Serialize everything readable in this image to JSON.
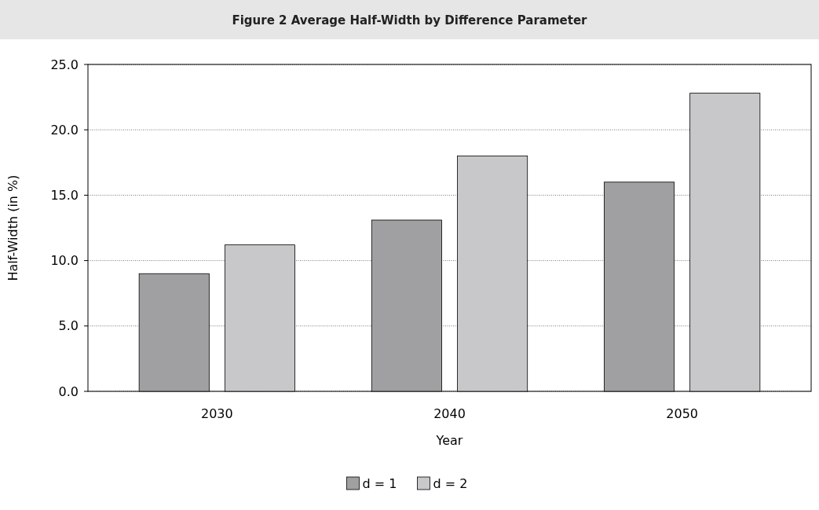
{
  "chart_data": {
    "type": "bar",
    "title": "Figure 2  Average Half-Width by Difference Parameter",
    "xlabel": "Year",
    "ylabel": "Half-Width (in %)",
    "categories": [
      "2030",
      "2040",
      "2050"
    ],
    "series": [
      {
        "name": "d = 1",
        "color": "#a0a0a2",
        "values": [
          9.0,
          13.1,
          16.0
        ]
      },
      {
        "name": "d = 2",
        "color": "#c8c8ca",
        "values": [
          11.2,
          18.0,
          22.8
        ]
      }
    ],
    "ylim": [
      0,
      25
    ],
    "yticks": [
      {
        "value": 0,
        "label": "0.0"
      },
      {
        "value": 5,
        "label": "5.0"
      },
      {
        "value": 10,
        "label": "10.0"
      },
      {
        "value": 15,
        "label": "15.0"
      },
      {
        "value": 20,
        "label": "20.0"
      },
      {
        "value": 25,
        "label": "25.0"
      }
    ],
    "grid": "y",
    "legend": "bottom"
  }
}
